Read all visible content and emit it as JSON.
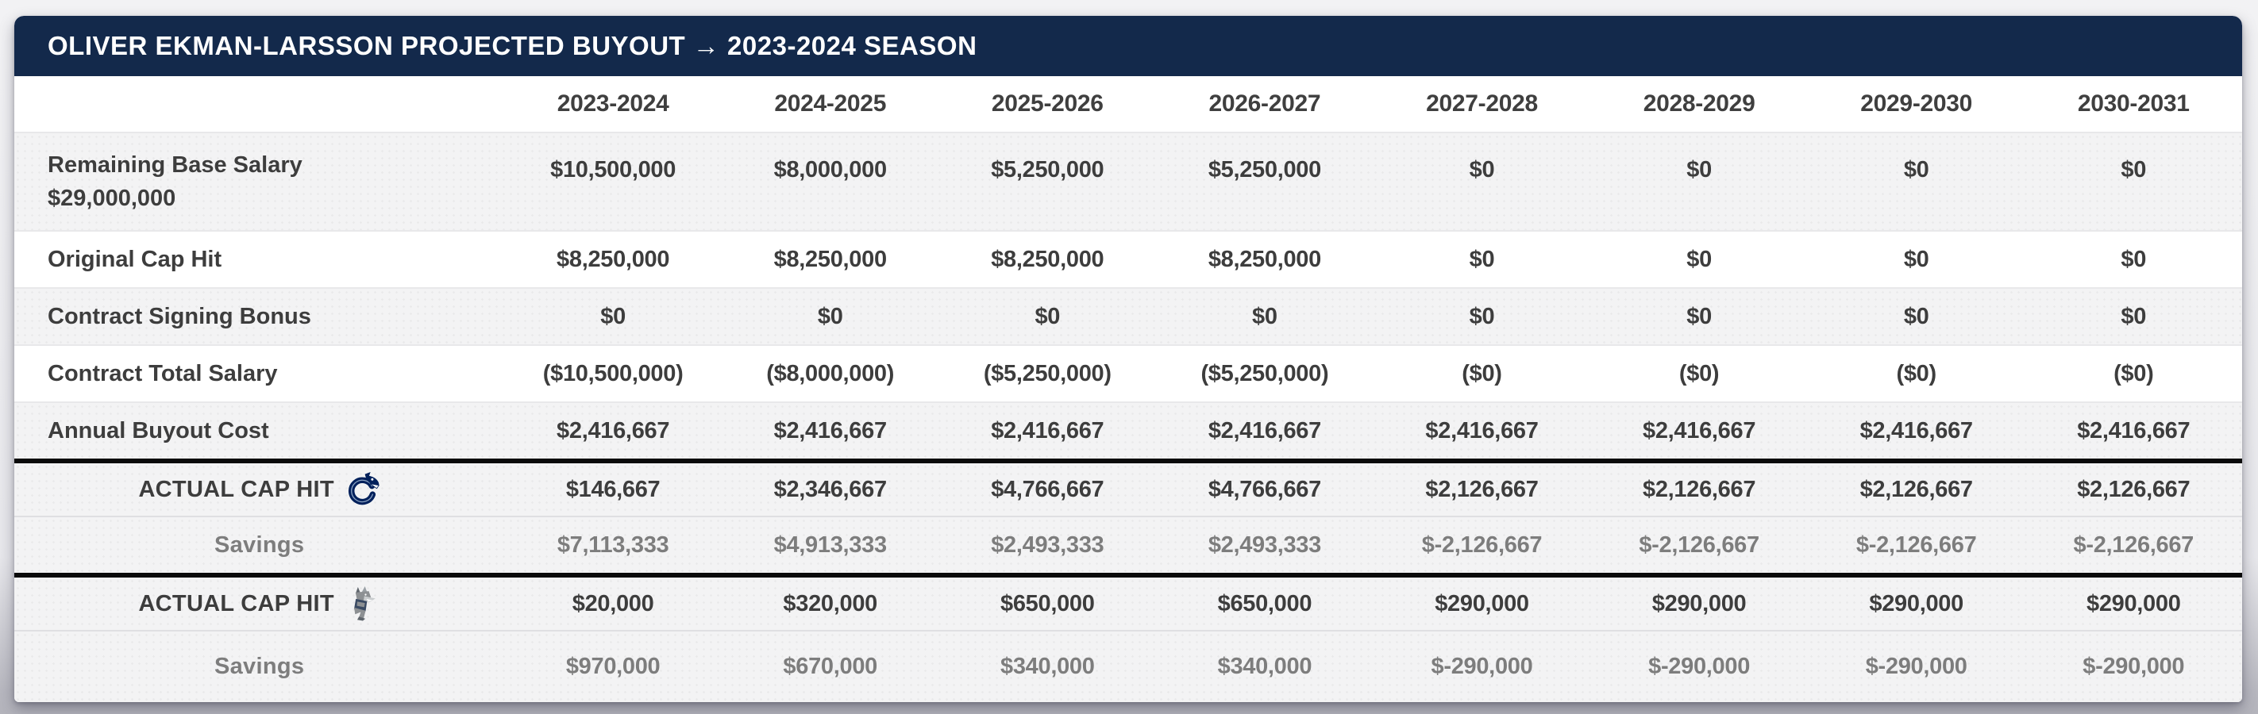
{
  "header": {
    "title": "OLIVER EKMAN-LARSSON PROJECTED BUYOUT → 2023-2024 SEASON"
  },
  "table": {
    "seasons": [
      "2023-2024",
      "2024-2025",
      "2025-2026",
      "2026-2027",
      "2027-2028",
      "2028-2029",
      "2029-2030",
      "2030-2031"
    ],
    "rows": [
      {
        "label": "Remaining Base Salary",
        "sublabel": "$29,000,000",
        "values": [
          "$10,500,000",
          "$8,000,000",
          "$5,250,000",
          "$5,250,000",
          "$0",
          "$0",
          "$0",
          "$0"
        ]
      },
      {
        "label": "Original Cap Hit",
        "values": [
          "$8,250,000",
          "$8,250,000",
          "$8,250,000",
          "$8,250,000",
          "$0",
          "$0",
          "$0",
          "$0"
        ]
      },
      {
        "label": "Contract Signing Bonus",
        "values": [
          "$0",
          "$0",
          "$0",
          "$0",
          "$0",
          "$0",
          "$0",
          "$0"
        ]
      },
      {
        "label": "Contract Total Salary",
        "values": [
          "($10,500,000)",
          "($8,000,000)",
          "($5,250,000)",
          "($5,250,000)",
          "($0)",
          "($0)",
          "($0)",
          "($0)"
        ]
      },
      {
        "label": "Annual Buyout Cost",
        "values": [
          "$2,416,667",
          "$2,416,667",
          "$2,416,667",
          "$2,416,667",
          "$2,416,667",
          "$2,416,667",
          "$2,416,667",
          "$2,416,667"
        ]
      }
    ],
    "team_sections": [
      {
        "logo": "canucks-logo",
        "cap_hit_label": "ACTUAL CAP HIT",
        "cap_hit": [
          "$146,667",
          "$2,346,667",
          "$4,766,667",
          "$4,766,667",
          "$2,126,667",
          "$2,126,667",
          "$2,126,667",
          "$2,126,667"
        ],
        "savings_label": "Savings",
        "savings": [
          "$7,113,333",
          "$4,913,333",
          "$2,493,333",
          "$2,493,333",
          "$-2,126,667",
          "$-2,126,667",
          "$-2,126,667",
          "$-2,126,667"
        ]
      },
      {
        "logo": "coyotes-logo",
        "cap_hit_label": "ACTUAL CAP HIT",
        "cap_hit": [
          "$20,000",
          "$320,000",
          "$650,000",
          "$650,000",
          "$290,000",
          "$290,000",
          "$290,000",
          "$290,000"
        ],
        "savings_label": "Savings",
        "savings": [
          "$970,000",
          "$670,000",
          "$340,000",
          "$340,000",
          "$-290,000",
          "$-290,000",
          "$-290,000",
          "$-290,000"
        ]
      }
    ]
  },
  "colors": {
    "header_bar_navy": "#13294b",
    "row_alt_gray": "#f4f4f5",
    "text_dark": "#3d3d3d",
    "text_muted": "#7d7d7d",
    "section_divider_black": "#0a0a0a",
    "canucks_navy": "#00205b",
    "coyotes_gray": "#8d9093",
    "coyotes_navy": "#3a4a63",
    "page_bg_bottom": "#b7b7bf"
  }
}
